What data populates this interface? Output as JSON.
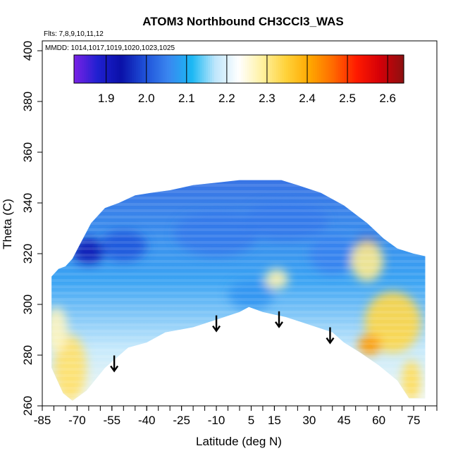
{
  "chart_data": {
    "type": "heatmap",
    "title": "ATOM3 Northbound CH3CCl3_WAS",
    "annotations": [
      "Flts: 7,8,9,10,11,12",
      "MMDD: 1014,1017,1019,1020,1023,1025"
    ],
    "xlabel": "Latitude (deg N)",
    "ylabel": "Theta (C)",
    "xlim": [
      -85,
      85
    ],
    "ylim": [
      260,
      400
    ],
    "x_ticks": [
      -85,
      -70,
      -55,
      -40,
      -25,
      -10,
      5,
      15,
      30,
      45,
      60,
      75
    ],
    "y_ticks": [
      260,
      280,
      300,
      320,
      340,
      360,
      380,
      400
    ],
    "colorbar": {
      "range": [
        1.82,
        2.64
      ],
      "ticks": [
        1.9,
        2.0,
        2.1,
        2.2,
        2.3,
        2.4,
        2.5,
        2.6
      ],
      "colors": [
        "#7a22e6",
        "#2020d0",
        "#0a10a8",
        "#1e50d8",
        "#3a86f0",
        "#1ab8f4",
        "#bfe6fb",
        "#ffffff",
        "#fff1a0",
        "#ffd23a",
        "#ffa800",
        "#ff6a00",
        "#ff1a00",
        "#d40008",
        "#8c1010"
      ]
    },
    "top_boundary": [
      [
        -81,
        311
      ],
      [
        -78,
        314
      ],
      [
        -75,
        315
      ],
      [
        -72,
        318
      ],
      [
        -68,
        325
      ],
      [
        -64,
        332
      ],
      [
        -58,
        338
      ],
      [
        -52,
        340
      ],
      [
        -45,
        343
      ],
      [
        -38,
        344
      ],
      [
        -30,
        345
      ],
      [
        -20,
        347
      ],
      [
        -10,
        348
      ],
      [
        0,
        349
      ],
      [
        5,
        349
      ],
      [
        10,
        349
      ],
      [
        18,
        349
      ],
      [
        25,
        347
      ],
      [
        35,
        344
      ],
      [
        45,
        339
      ],
      [
        55,
        332
      ],
      [
        62,
        326
      ],
      [
        68,
        322
      ],
      [
        75,
        320
      ],
      [
        80,
        319
      ]
    ],
    "bottom_boundary": [
      [
        -81,
        275
      ],
      [
        -76,
        265
      ],
      [
        -72,
        262
      ],
      [
        -66,
        266
      ],
      [
        -58,
        275
      ],
      [
        -48,
        283
      ],
      [
        -40,
        285
      ],
      [
        -32,
        289
      ],
      [
        -20,
        291
      ],
      [
        -10,
        294
      ],
      [
        0,
        297
      ],
      [
        4,
        299
      ],
      [
        10,
        297
      ],
      [
        20,
        295
      ],
      [
        30,
        292
      ],
      [
        40,
        289
      ],
      [
        45,
        285
      ],
      [
        52,
        281
      ],
      [
        60,
        276
      ],
      [
        68,
        270
      ],
      [
        73,
        263
      ],
      [
        80,
        263
      ]
    ],
    "warm_regions": [
      {
        "x": -73,
        "y": 275,
        "value": 2.32,
        "rx": 7,
        "ry": 13
      },
      {
        "x": -79,
        "y": 290,
        "value": 2.27,
        "rx": 5,
        "ry": 9
      },
      {
        "x": 66,
        "y": 293,
        "value": 2.34,
        "rx": 12,
        "ry": 12
      },
      {
        "x": 56,
        "y": 284,
        "value": 2.42,
        "rx": 5,
        "ry": 4
      },
      {
        "x": 74,
        "y": 270,
        "value": 2.33,
        "rx": 4,
        "ry": 8
      },
      {
        "x": 55,
        "y": 317,
        "value": 2.3,
        "rx": 7,
        "ry": 8
      },
      {
        "x": 16,
        "y": 310,
        "value": 2.28,
        "rx": 5,
        "ry": 4
      }
    ],
    "cool_regions": [
      {
        "x": -65,
        "y": 321,
        "value": 1.92,
        "rx": 7,
        "ry": 5
      },
      {
        "x": 55,
        "y": 324,
        "value": 1.96,
        "rx": 5,
        "ry": 3
      },
      {
        "x": -50,
        "y": 323,
        "value": 2.0,
        "rx": 10,
        "ry": 6
      },
      {
        "x": -10,
        "y": 328,
        "value": 2.04,
        "rx": 18,
        "ry": 9
      },
      {
        "x": 20,
        "y": 333,
        "value": 2.04,
        "rx": 18,
        "ry": 8
      },
      {
        "x": 40,
        "y": 320,
        "value": 2.05,
        "rx": 10,
        "ry": 8
      },
      {
        "x": 5,
        "y": 304,
        "value": 2.07,
        "rx": 10,
        "ry": 6
      }
    ],
    "arrows_x": [
      -54,
      -10,
      17,
      39
    ]
  }
}
